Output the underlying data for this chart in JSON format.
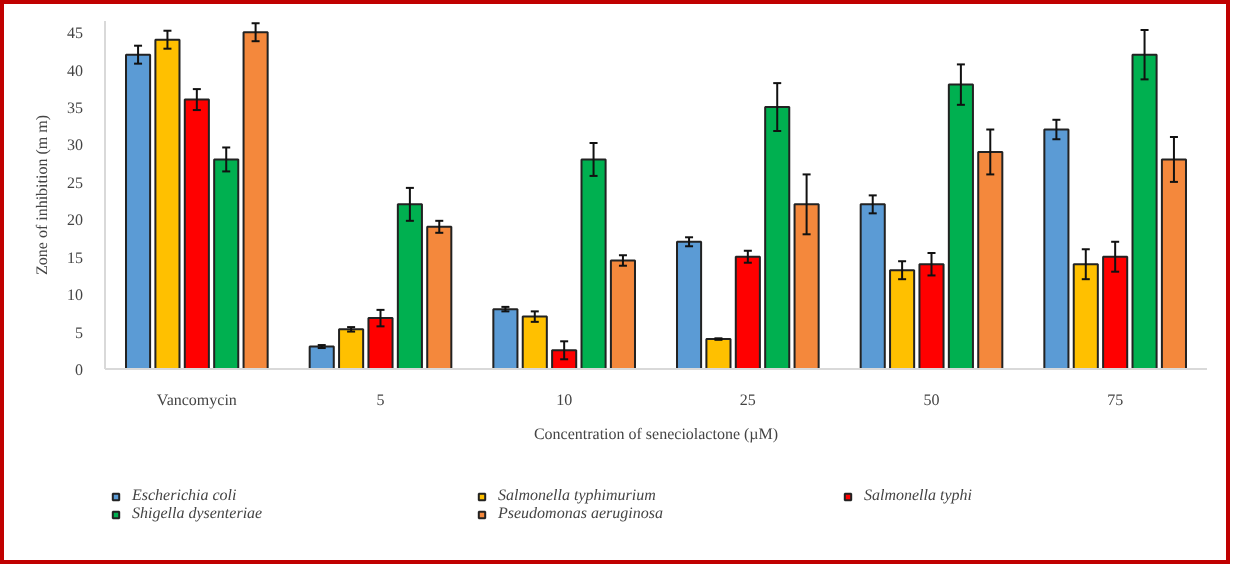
{
  "chart_data": {
    "type": "bar",
    "xlabel": "Concentration of seneciolactone (µM)",
    "ylabel": "Zone of inhibition (m m)",
    "categories": [
      "Vancomycin",
      "5",
      "10",
      "25",
      "50",
      "75"
    ],
    "series": [
      {
        "name": "Escherichia coli",
        "color": "#5b9bd5",
        "values": [
          42,
          3,
          8,
          17,
          22,
          32
        ],
        "errors": [
          1.2,
          0.2,
          0.3,
          0.6,
          1.2,
          1.3
        ]
      },
      {
        "name": "Salmonella typhimurium",
        "color": "#ffc000",
        "values": [
          44,
          5.3,
          7,
          4,
          13.2,
          14
        ],
        "errors": [
          1.2,
          0.3,
          0.7,
          0.1,
          1.2,
          2
        ]
      },
      {
        "name": "Salmonella typhi",
        "color": "#ff0000",
        "values": [
          36,
          6.8,
          2.5,
          15,
          14,
          15
        ],
        "errors": [
          1.4,
          1.1,
          1.2,
          0.8,
          1.5,
          2
        ]
      },
      {
        "name": "Shigella dysenteriae",
        "color": "#00b050",
        "values": [
          28,
          22,
          28,
          35,
          38,
          42
        ],
        "errors": [
          1.6,
          2.2,
          2.2,
          3.2,
          2.7,
          3.3
        ]
      },
      {
        "name": "Pseudomonas aeruginosa",
        "color": "#f4883c",
        "values": [
          45,
          19,
          14.5,
          22,
          29,
          28
        ],
        "errors": [
          1.2,
          0.8,
          0.7,
          4,
          3,
          3
        ]
      }
    ],
    "ylim": [
      0,
      46.5
    ],
    "yticks": [
      0,
      5,
      10,
      15,
      20,
      25,
      30,
      35,
      40,
      45
    ],
    "grid": false,
    "legend": "bottom"
  }
}
